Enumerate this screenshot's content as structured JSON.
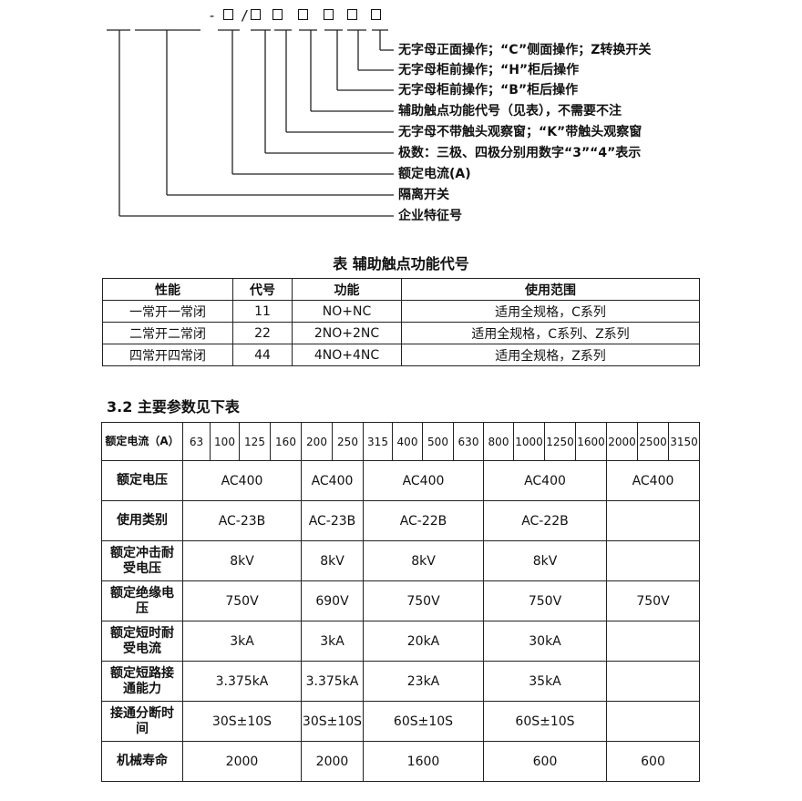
{
  "model_code": {
    "separator_dash": "-",
    "separator_slash": "/",
    "labels": [
      "无字母正面操作；“C”侧面操作；Z转换开关",
      "无字母柜前操作；“H”柜后操作",
      "无字母柜前操作；“B”柜后操作",
      "辅助触点功能代号（见表），不需要不注",
      "无字母不带触头观察窗；“K”带触头观察窗",
      "极数：三极、四极分别用数字“3”“4”表示",
      "额定电流(A)",
      "隔离开关",
      "企业特征号"
    ]
  },
  "aux_table": {
    "title": "表  辅助触点功能代号",
    "headers": [
      "性能",
      "代号",
      "功能",
      "使用范围"
    ],
    "rows": [
      [
        "一常开一常闭",
        "11",
        "NO+NC",
        "适用全规格，C系列"
      ],
      [
        "二常开二常闭",
        "22",
        "2NO+2NC",
        "适用全规格，C系列、Z系列"
      ],
      [
        "四常开四常闭",
        "44",
        "4NO+4NC",
        "适用全规格，Z系列"
      ]
    ]
  },
  "params": {
    "section_title": "3.2 主要参数见下表",
    "current_header": "额定电流（A）",
    "currents": [
      "63",
      "100",
      "125",
      "160",
      "200",
      "250",
      "315",
      "400",
      "500",
      "630",
      "800",
      "1000",
      "1250",
      "1600",
      "2000",
      "2500",
      "3150"
    ],
    "rows": [
      {
        "label": "额定电压",
        "values": [
          "AC400",
          "AC400",
          "AC400",
          "AC400",
          "AC400"
        ]
      },
      {
        "label": "使用类别",
        "values": [
          "AC-23B",
          "AC-23B",
          "AC-22B",
          "AC-22B",
          ""
        ]
      },
      {
        "label": "额定冲击耐受电压",
        "values": [
          "8kV",
          "8kV",
          "8kV",
          "8kV",
          ""
        ]
      },
      {
        "label": "额定绝缘电压",
        "values": [
          "750V",
          "690V",
          "750V",
          "750V",
          "750V"
        ]
      },
      {
        "label": "额定短时耐受电流",
        "values": [
          "3kA",
          "3kA",
          "20kA",
          "30kA",
          ""
        ]
      },
      {
        "label": "额定短路接通能力",
        "values": [
          "3.375kA",
          "3.375kA",
          "23kA",
          "35kA",
          ""
        ]
      },
      {
        "label": "接通分断时间",
        "values": [
          "30S±10S",
          "30S±10S",
          "60S±10S",
          "60S±10S",
          ""
        ]
      },
      {
        "label": "机械寿命",
        "values": [
          "2000",
          "2000",
          "1600",
          "600",
          "600"
        ]
      }
    ]
  }
}
